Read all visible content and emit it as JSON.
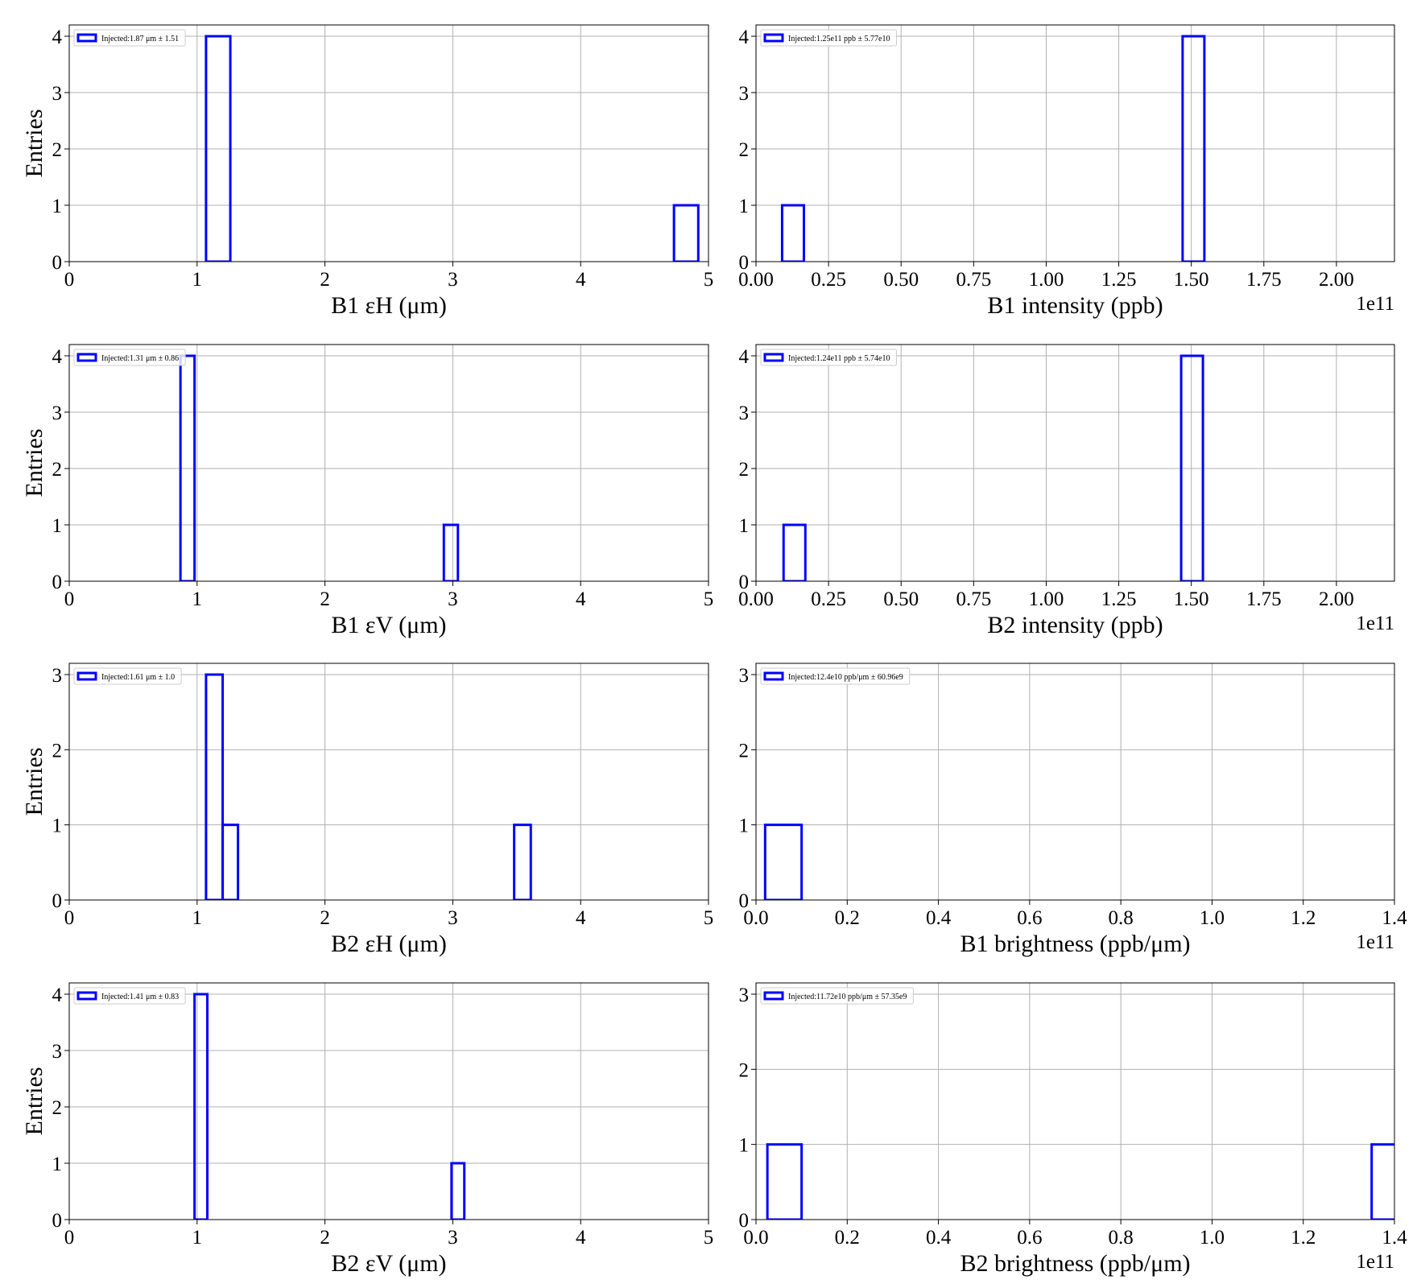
{
  "chart_data": [
    {
      "type": "histogram",
      "xlabel": "B1 εH (μm)",
      "ylabel": "Entries",
      "legend_label": "Injected:1.87 μm ± 1.51",
      "legend_loc": "upper left",
      "color": "#0000ff",
      "grid": true,
      "bins": [
        1.07,
        1.26,
        4.73,
        4.92
      ],
      "values": [
        4,
        0,
        1
      ],
      "xlim": [
        0,
        5
      ],
      "xticks": [
        0,
        1,
        2,
        3,
        4,
        5
      ],
      "ylim": [
        0,
        4.2
      ],
      "yticks": [
        0,
        1,
        2,
        3,
        4
      ]
    },
    {
      "type": "histogram",
      "xlabel": "B1 intensity (ppb)",
      "x_offset_label": "1e11",
      "legend_label": "Injected:1.25e11 ppb ± 5.77e10",
      "legend_loc": "upper left",
      "color": "#0000ff",
      "grid": true,
      "bins": [
        0.09,
        0.165,
        1.47,
        1.545
      ],
      "values": [
        1,
        0,
        4
      ],
      "xlim": [
        0,
        2.2
      ],
      "xticks": [
        {
          "value": 0,
          "label": "0.00"
        },
        0.25,
        {
          "value": 0.5,
          "label": "0.50"
        },
        0.75,
        {
          "value": 1,
          "label": "1.00"
        },
        1.25,
        {
          "value": 1.5,
          "label": "1.50"
        },
        1.75,
        {
          "value": 2,
          "label": "2.00"
        }
      ],
      "ylim": [
        0,
        4.2
      ],
      "yticks": [
        0,
        1,
        2,
        3,
        4
      ]
    },
    {
      "type": "histogram",
      "xlabel": "B1 εV (μm)",
      "ylabel": "Entries",
      "legend_label": "Injected:1.31 μm ± 0.86",
      "legend_loc": "upper left",
      "color": "#0000ff",
      "grid": true,
      "bins": [
        0.87,
        0.98,
        2.93,
        3.04
      ],
      "values": [
        4,
        0,
        1
      ],
      "xlim": [
        0,
        5
      ],
      "xticks": [
        0,
        1,
        2,
        3,
        4,
        5
      ],
      "ylim": [
        0,
        4.2
      ],
      "yticks": [
        0,
        1,
        2,
        3,
        4
      ]
    },
    {
      "type": "histogram",
      "xlabel": "B2 intensity (ppb)",
      "x_offset_label": "1e11",
      "legend_label": "Injected:1.24e11 ppb ± 5.74e10",
      "legend_loc": "upper left",
      "color": "#0000ff",
      "grid": true,
      "bins": [
        0.095,
        0.17,
        1.465,
        1.54
      ],
      "values": [
        1,
        0,
        4
      ],
      "xlim": [
        0,
        2.2
      ],
      "xticks": [
        {
          "value": 0,
          "label": "0.00"
        },
        0.25,
        {
          "value": 0.5,
          "label": "0.50"
        },
        0.75,
        {
          "value": 1,
          "label": "1.00"
        },
        1.25,
        {
          "value": 1.5,
          "label": "1.50"
        },
        1.75,
        {
          "value": 2,
          "label": "2.00"
        }
      ],
      "ylim": [
        0,
        4.2
      ],
      "yticks": [
        0,
        1,
        2,
        3,
        4
      ]
    },
    {
      "type": "histogram",
      "xlabel": "B2 εH (μm)",
      "ylabel": "Entries",
      "legend_label": "Injected:1.61 μm ± 1.0",
      "legend_loc": "upper left",
      "color": "#0000ff",
      "grid": true,
      "bins": [
        1.07,
        1.2,
        1.32,
        3.48,
        3.61
      ],
      "values": [
        3,
        1,
        0,
        1
      ],
      "xlim": [
        0,
        5
      ],
      "xticks": [
        0,
        1,
        2,
        3,
        4,
        5
      ],
      "ylim": [
        0,
        3.15
      ],
      "yticks": [
        0,
        1,
        2,
        3
      ]
    },
    {
      "type": "histogram",
      "xlabel": "B1 brightness (ppb/μm)",
      "x_offset_label": "1e11",
      "legend_label": "Injected:12.4e10 ppb/μm ± 60.96e9",
      "legend_loc": "upper left",
      "color": "#0000ff",
      "grid": true,
      "bins": [
        0.02,
        0.1,
        1.4
      ],
      "values": [
        1,
        0
      ],
      "xlim": [
        0,
        1.4
      ],
      "xticks": [
        {
          "value": 0,
          "label": "0.0"
        },
        0.2,
        0.4,
        0.6,
        0.8,
        {
          "value": 1,
          "label": "1.0"
        },
        1.2,
        1.4
      ],
      "ylim": [
        0,
        3.15
      ],
      "yticks": [
        0,
        1,
        2,
        3
      ]
    },
    {
      "type": "histogram",
      "xlabel": "B2 εV (μm)",
      "ylabel": "Entries",
      "legend_label": "Injected:1.41 μm ± 0.83",
      "legend_loc": "upper left",
      "color": "#0000ff",
      "grid": true,
      "bins": [
        0.98,
        1.08,
        2.99,
        3.09
      ],
      "values": [
        4,
        0,
        1
      ],
      "xlim": [
        0,
        5
      ],
      "xticks": [
        0,
        1,
        2,
        3,
        4,
        5
      ],
      "ylim": [
        0,
        4.2
      ],
      "yticks": [
        0,
        1,
        2,
        3,
        4
      ]
    },
    {
      "type": "histogram",
      "xlabel": "B2 brightness (ppb/μm)",
      "x_offset_label": "1e11",
      "legend_label": "Injected:11.72e10 ppb/μm ± 57.35e9",
      "legend_loc": "upper left",
      "color": "#0000ff",
      "grid": true,
      "bins": [
        0.025,
        0.1,
        1.35,
        1.45
      ],
      "values": [
        1,
        0,
        1
      ],
      "xlim": [
        0,
        1.4
      ],
      "xticks": [
        {
          "value": 0,
          "label": "0.0"
        },
        0.2,
        0.4,
        0.6,
        0.8,
        {
          "value": 1,
          "label": "1.0"
        },
        1.2,
        1.4
      ],
      "ylim": [
        0,
        3.15
      ],
      "yticks": [
        0,
        1,
        2,
        3
      ]
    }
  ]
}
